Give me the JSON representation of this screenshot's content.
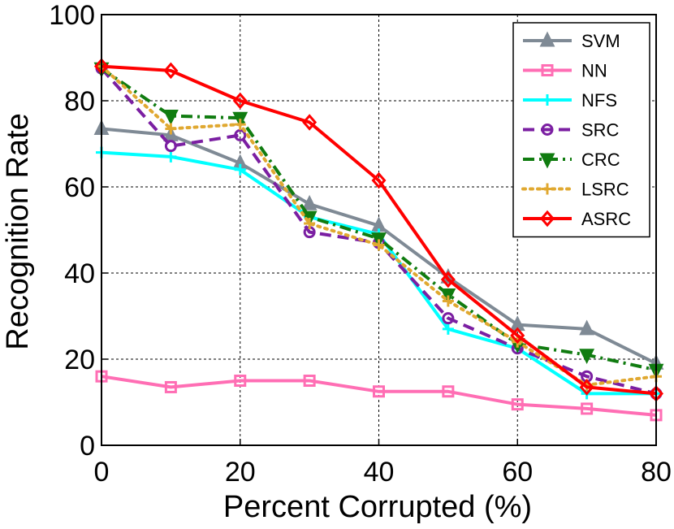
{
  "chart_data": {
    "type": "line",
    "title": "",
    "xlabel": "Percent Corrupted (%)",
    "ylabel": "Recognition Rate",
    "xlim": [
      0,
      80
    ],
    "ylim": [
      0,
      100
    ],
    "x": [
      0,
      10,
      20,
      30,
      40,
      50,
      60,
      70,
      80
    ],
    "xticks": [
      "0",
      "20",
      "40",
      "60",
      "80"
    ],
    "yticks": [
      "0",
      "20",
      "40",
      "60",
      "80",
      "100"
    ],
    "grid": true,
    "legend_position": "top-right",
    "series": [
      {
        "name": "SVM",
        "color": "#7f8a95",
        "dash": "solid",
        "marker": "triangle-up",
        "values": [
          73.5,
          72,
          65.5,
          56,
          51,
          39,
          28,
          27,
          19
        ]
      },
      {
        "name": "NN",
        "color": "#ff6eb4",
        "dash": "solid",
        "marker": "square",
        "values": [
          16,
          13.5,
          15,
          15,
          12.5,
          12.5,
          9.5,
          8.5,
          7
        ]
      },
      {
        "name": "NFS",
        "color": "#00ffff",
        "dash": "solid",
        "marker": "plus",
        "values": [
          68,
          67,
          64,
          53,
          49,
          27,
          22.5,
          12,
          12
        ]
      },
      {
        "name": "SRC",
        "color": "#7b1fa2",
        "dash": "dashed",
        "marker": "circle",
        "values": [
          87.5,
          69.5,
          72,
          49.5,
          47,
          29.5,
          22.5,
          16,
          12
        ]
      },
      {
        "name": "CRC",
        "color": "#107c10",
        "dash": "dashdot",
        "marker": "triangle-down",
        "values": [
          87.5,
          76.5,
          76,
          53,
          48,
          35,
          23.5,
          21,
          17.5
        ]
      },
      {
        "name": "LSRC",
        "color": "#e0a830",
        "dash": "dotted",
        "marker": "plus",
        "values": [
          88,
          73.5,
          74.5,
          51.5,
          46.5,
          33.5,
          24,
          14,
          16
        ]
      },
      {
        "name": "ASRC",
        "color": "#ff0000",
        "dash": "solid",
        "marker": "diamond",
        "values": [
          88,
          87,
          80,
          75,
          61.5,
          38.5,
          25.5,
          13.5,
          12
        ]
      }
    ]
  }
}
